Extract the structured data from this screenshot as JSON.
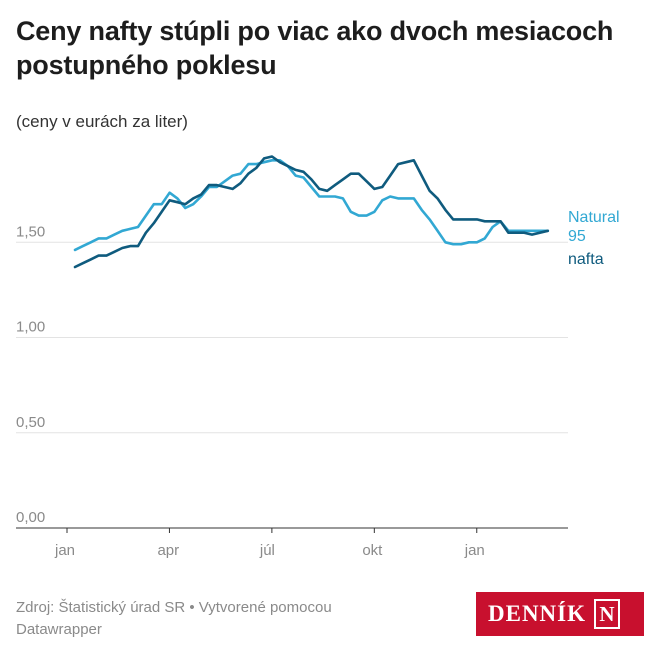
{
  "title": "Ceny nafty stúpli po viac ako dvoch mesiacoch postupného poklesu",
  "subtitle": "(ceny v eurách za liter)",
  "footer": {
    "source": "Zdroj: Štatistický úrad SR • Vytvorené pomocou Datawrapper"
  },
  "logo": {
    "text": "DENNÍK",
    "mark": "N",
    "color": "#c8102e"
  },
  "chart_data": {
    "type": "line",
    "ylim": [
      0,
      2.0
    ],
    "y_ticks": [
      0,
      0.5,
      1.0,
      1.5
    ],
    "y_tick_labels": [
      "0,00",
      "0,50",
      "1,00",
      "1,50"
    ],
    "x_ticks": [
      {
        "week": 0,
        "label": "jan"
      },
      {
        "week": 13,
        "label": "apr"
      },
      {
        "week": 26,
        "label": "júl"
      },
      {
        "week": 39,
        "label": "okt"
      },
      {
        "week": 52,
        "label": "jan"
      }
    ],
    "grid": true,
    "series": [
      {
        "name": "Natural 95",
        "color": "#32a8d3",
        "values": [
          1.46,
          1.48,
          1.5,
          1.52,
          1.52,
          1.54,
          1.56,
          1.57,
          1.58,
          1.64,
          1.7,
          1.7,
          1.76,
          1.73,
          1.68,
          1.7,
          1.74,
          1.79,
          1.79,
          1.82,
          1.85,
          1.86,
          1.91,
          1.91,
          1.92,
          1.93,
          1.93,
          1.9,
          1.85,
          1.84,
          1.79,
          1.74,
          1.74,
          1.74,
          1.73,
          1.66,
          1.64,
          1.64,
          1.66,
          1.72,
          1.74,
          1.73,
          1.73,
          1.73,
          1.67,
          1.62,
          1.56,
          1.5,
          1.49,
          1.49,
          1.5,
          1.5,
          1.52,
          1.58,
          1.61,
          1.56,
          1.56,
          1.56,
          1.56,
          1.56,
          1.56
        ]
      },
      {
        "name": "nafta",
        "color": "#0f5b7e",
        "values": [
          1.37,
          1.39,
          1.41,
          1.43,
          1.43,
          1.45,
          1.47,
          1.48,
          1.48,
          1.55,
          1.6,
          1.66,
          1.72,
          1.71,
          1.7,
          1.73,
          1.75,
          1.8,
          1.8,
          1.79,
          1.78,
          1.81,
          1.86,
          1.89,
          1.94,
          1.95,
          1.92,
          1.9,
          1.88,
          1.87,
          1.83,
          1.78,
          1.77,
          1.8,
          1.83,
          1.86,
          1.86,
          1.82,
          1.78,
          1.79,
          1.85,
          1.91,
          1.92,
          1.93,
          1.85,
          1.77,
          1.73,
          1.67,
          1.62,
          1.62,
          1.62,
          1.62,
          1.61,
          1.61,
          1.61,
          1.55,
          1.55,
          1.55,
          1.54,
          1.55,
          1.56
        ]
      }
    ],
    "series_labels": [
      {
        "series": 0,
        "lines": [
          "Natural",
          "95"
        ]
      },
      {
        "series": 1,
        "lines": [
          "nafta"
        ]
      }
    ]
  }
}
